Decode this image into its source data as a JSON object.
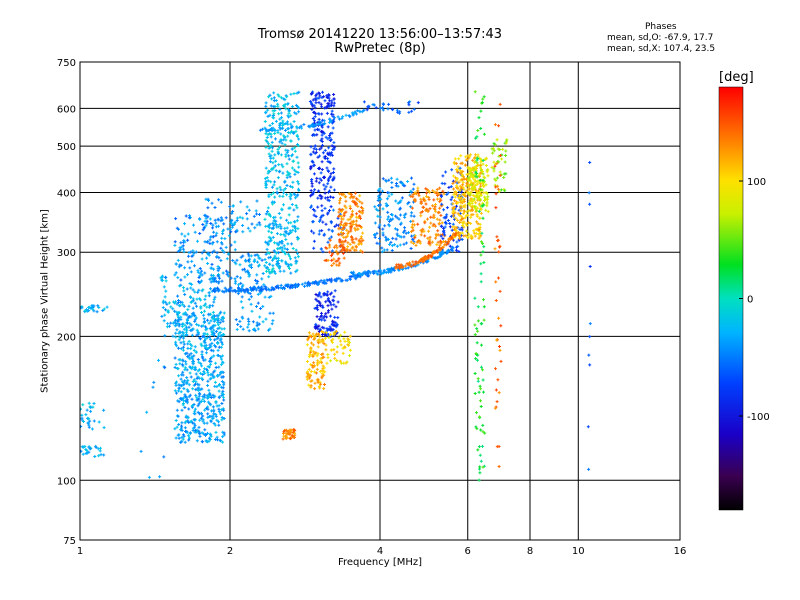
{
  "chart_data": {
    "type": "scatter",
    "title": "Tromsø 20141220 13:56:00–13:57:43",
    "subtitle": "RwPretec (8p)",
    "xlabel": "Frequency [MHz]",
    "ylabel": "Stationary phase Virtual Height [km]",
    "x_scale": "log2",
    "y_scale": "log",
    "xlim": [
      1,
      16
    ],
    "ylim": [
      75,
      750
    ],
    "x_ticks": [
      1,
      2,
      4,
      6,
      8,
      10,
      16
    ],
    "y_ticks": [
      75,
      100,
      200,
      300,
      400,
      500,
      600,
      750
    ],
    "grid": true,
    "phase_stats": {
      "title": "Phases",
      "o_mode": "mean, sd,O: -67.9, 17.7",
      "x_mode": "mean, sd,X: 107.4, 23.5"
    },
    "colorbar": {
      "unit": "[deg]",
      "range": [
        -180,
        180
      ],
      "ticks": [
        {
          "value": 100,
          "label": "100"
        },
        {
          "value": 0,
          "label": "0"
        },
        {
          "value": -100,
          "label": "-100"
        }
      ]
    },
    "clusters": [
      {
        "f": [
          1.55,
          1.95
        ],
        "h": [
          120,
          225
        ],
        "phase": -35,
        "n": 560
      },
      {
        "f": [
          1.45,
          1.9
        ],
        "h": [
          200,
          270
        ],
        "phase": -30,
        "n": 160
      },
      {
        "f": [
          1.55,
          2.05
        ],
        "h": [
          260,
          360
        ],
        "phase": -45,
        "n": 160
      },
      {
        "f": [
          1.75,
          2.3
        ],
        "h": [
          330,
          390
        ],
        "phase": -40,
        "n": 60
      },
      {
        "f": [
          1.0,
          1.12
        ],
        "h": [
          128,
          145
        ],
        "phase": -25,
        "n": 30
      },
      {
        "f": [
          1.0,
          1.12
        ],
        "h": [
          112,
          118
        ],
        "phase": -28,
        "n": 25
      },
      {
        "f": [
          1.0,
          1.15
        ],
        "h": [
          225,
          232
        ],
        "phase": -30,
        "n": 25
      },
      {
        "f": [
          2.35,
          2.75
        ],
        "h": [
          270,
          650
        ],
        "phase": -25,
        "n": 420
      },
      {
        "f": [
          2.05,
          2.45
        ],
        "h": [
          205,
          300
        ],
        "phase": -40,
        "n": 120
      },
      {
        "f": [
          2.55,
          2.7
        ],
        "h": [
          122,
          128
        ],
        "phase": 135,
        "n": 40
      },
      {
        "f": [
          2.9,
          3.25
        ],
        "h": [
          380,
          650
        ],
        "phase": -85,
        "n": 220
      },
      {
        "f": [
          2.9,
          3.4
        ],
        "h": [
          300,
          380
        ],
        "phase": -70,
        "n": 60
      },
      {
        "f": [
          2.95,
          3.3
        ],
        "h": [
          200,
          250
        ],
        "phase": -90,
        "n": 110
      },
      {
        "f": [
          2.85,
          3.1
        ],
        "h": [
          155,
          205
        ],
        "phase": 115,
        "n": 110
      },
      {
        "f": [
          3.1,
          3.5
        ],
        "h": [
          175,
          205
        ],
        "phase": 95,
        "n": 50
      },
      {
        "f": [
          3.3,
          3.7
        ],
        "h": [
          300,
          400
        ],
        "phase": 130,
        "n": 160
      },
      {
        "f": [
          3.1,
          3.4
        ],
        "h": [
          280,
          320
        ],
        "phase": 140,
        "n": 40
      },
      {
        "f": [
          3.9,
          4.7
        ],
        "h": [
          300,
          430
        ],
        "phase": -45,
        "n": 140
      },
      {
        "f": [
          4.6,
          5.4
        ],
        "h": [
          310,
          410
        ],
        "phase": 130,
        "n": 140
      },
      {
        "f": [
          5.3,
          5.85
        ],
        "h": [
          300,
          450
        ],
        "phase": -75,
        "n": 90
      },
      {
        "f": [
          5.6,
          6.4
        ],
        "h": [
          320,
          480
        ],
        "phase": 110,
        "n": 260
      },
      {
        "f": [
          6.0,
          6.6
        ],
        "h": [
          360,
          480
        ],
        "phase": 80,
        "n": 130
      },
      {
        "f": [
          6.7,
          7.2
        ],
        "h": [
          400,
          520
        ],
        "phase": 60,
        "n": 40
      },
      {
        "f": [
          3.7,
          4.8
        ],
        "h": [
          585,
          620
        ],
        "phase": -65,
        "n": 30
      },
      {
        "f": [
          6.2,
          6.5
        ],
        "h": [
          100,
          650
        ],
        "phase": 30,
        "n": 90
      },
      {
        "f": [
          6.8,
          7.0
        ],
        "h": [
          90,
          650
        ],
        "phase": 140,
        "n": 40
      },
      {
        "f": [
          10.4,
          10.6
        ],
        "h": [
          95,
          500
        ],
        "phase": -70,
        "n": 10
      },
      {
        "f": [
          1.3,
          1.5
        ],
        "h": [
          100,
          180
        ],
        "phase": -40,
        "n": 10
      }
    ],
    "traces": [
      {
        "f0": 1.85,
        "f1": 3.8,
        "h0": 250,
        "h1": 270,
        "phase": -55,
        "n": 180
      },
      {
        "f0": 3.5,
        "f1": 5.6,
        "h0": 270,
        "h1": 305,
        "phase": -45,
        "n": 120
      },
      {
        "f0": 4.3,
        "f1": 5.7,
        "h0": 280,
        "h1": 330,
        "phase": 140,
        "n": 100
      },
      {
        "f0": 2.3,
        "f1": 3.7,
        "h0": 540,
        "h1": 595,
        "phase": -40,
        "n": 60
      }
    ]
  }
}
